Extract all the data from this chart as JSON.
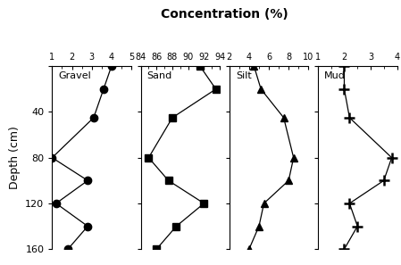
{
  "title": "Concentration (%)",
  "ylabel": "Depth (cm)",
  "depth": [
    0,
    20,
    45,
    80,
    100,
    120,
    140,
    160
  ],
  "gravel": {
    "label": "Gravel",
    "values": [
      4.0,
      3.6,
      3.1,
      1.0,
      2.8,
      1.2,
      2.8,
      1.8
    ],
    "xlim": [
      1,
      5
    ],
    "xticks": [
      1,
      2,
      3,
      4,
      5
    ],
    "marker": "o"
  },
  "sand": {
    "label": "Sand",
    "values": [
      91.5,
      93.5,
      88.0,
      85.0,
      87.5,
      92.0,
      88.5,
      86.0
    ],
    "xlim": [
      84,
      94
    ],
    "xticks": [
      84,
      86,
      88,
      90,
      92,
      94
    ],
    "marker": "s"
  },
  "silt": {
    "label": "Silt",
    "values": [
      4.5,
      5.2,
      7.5,
      8.5,
      8.0,
      5.5,
      5.0,
      4.0
    ],
    "xlim": [
      2,
      10
    ],
    "xticks": [
      2,
      4,
      6,
      8,
      10
    ],
    "marker": "^"
  },
  "mud": {
    "label": "Mud",
    "values": [
      2.0,
      2.0,
      2.2,
      3.8,
      3.5,
      2.2,
      2.5,
      2.0
    ],
    "xlim": [
      1,
      4
    ],
    "xticks": [
      1,
      2,
      3,
      4
    ],
    "marker": "+"
  },
  "ylim": [
    160,
    0
  ],
  "yticks": [
    0,
    40,
    80,
    120,
    160
  ],
  "color": "#000000",
  "background": "#ffffff",
  "title_fontsize": 10,
  "label_fontsize": 8,
  "tick_fontsize": 7
}
